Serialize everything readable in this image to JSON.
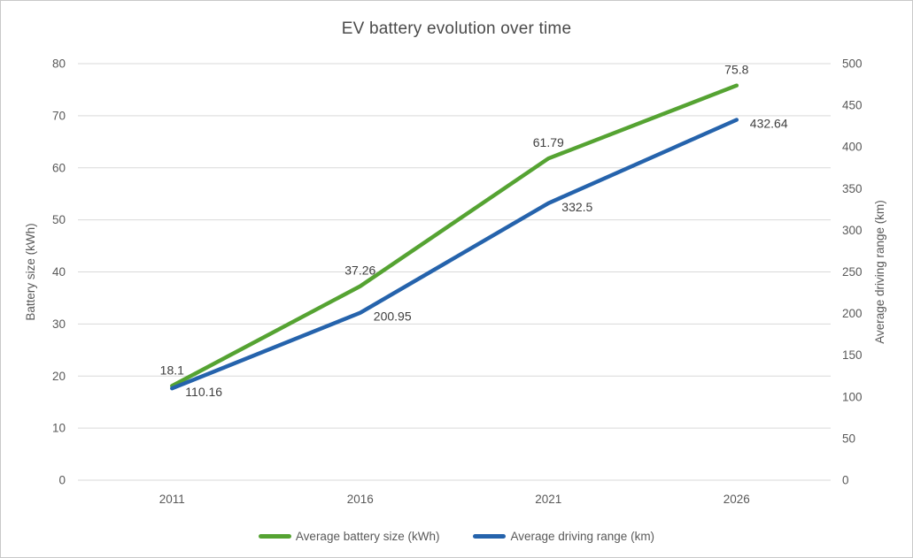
{
  "chart_data": {
    "type": "line",
    "title": "EV battery evolution over time",
    "categories": [
      "2011",
      "2016",
      "2021",
      "2026"
    ],
    "series": [
      {
        "name": "Average battery size (kWh)",
        "key": "battery",
        "axis": "left",
        "color": "#55a332",
        "values": [
          18.1,
          37.26,
          61.79,
          75.8
        ],
        "labels": [
          "18.1",
          "37.26",
          "61.79",
          "75.8"
        ]
      },
      {
        "name": "Average driving range (km)",
        "key": "range",
        "axis": "right",
        "color": "#2563ac",
        "values": [
          110.16,
          200.95,
          332.5,
          432.64
        ],
        "labels": [
          "110.16",
          "200.95",
          "332.5",
          "432.64"
        ]
      }
    ],
    "xlabel": "",
    "ylabel_left": "Battery size (kWh)",
    "ylabel_right": "Average driving range (km)",
    "yaxis_left": {
      "min": 0,
      "max": 80,
      "ticks": [
        0,
        10,
        20,
        30,
        40,
        50,
        60,
        70,
        80
      ]
    },
    "yaxis_right": {
      "min": 0,
      "max": 500,
      "ticks": [
        0,
        50,
        100,
        150,
        200,
        250,
        300,
        350,
        400,
        450,
        500
      ]
    },
    "grid": true,
    "legend_position": "bottom",
    "colors": {
      "grid": "#d9d9d9",
      "tick_text": "#595959",
      "title_text": "#4a4a4a",
      "data_label_text": "#3f3f3f"
    }
  }
}
